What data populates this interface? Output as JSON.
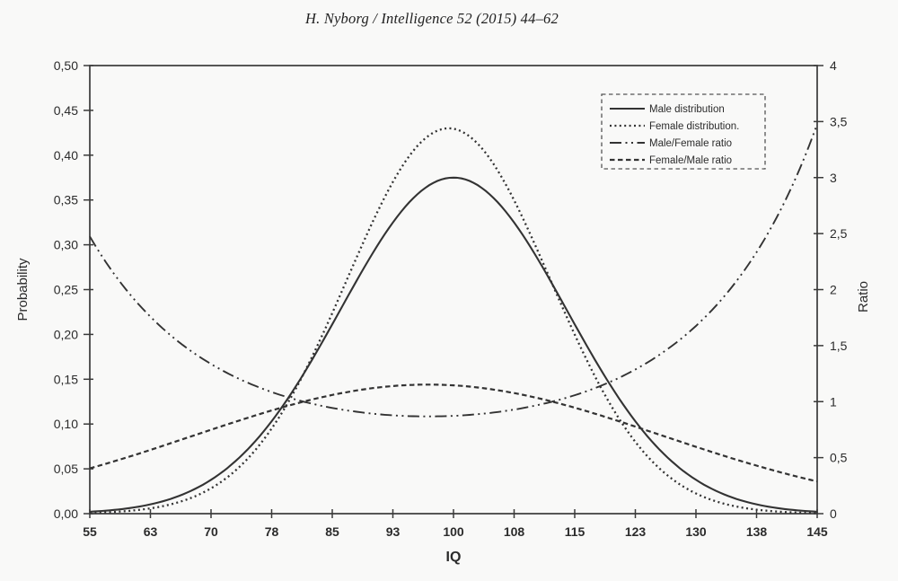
{
  "header": {
    "citation": "H. Nyborg / Intelligence 52 (2015) 44–62"
  },
  "colors": {
    "line": "#333333",
    "axis": "#3a3a3a",
    "text": "#2b2b2b",
    "background": "#f9f9f8"
  },
  "chart_data": {
    "type": "line",
    "title": "",
    "xlabel": "IQ",
    "ylabel_left": "Probability",
    "ylabel_right": "Ratio",
    "x_range": [
      55,
      145
    ],
    "y_left_range": [
      0,
      0.5
    ],
    "y_right_range": [
      0,
      4
    ],
    "grid": false,
    "legend_position": "top-right",
    "legend_border": "dashed",
    "x_tick_labels": [
      "55",
      "63",
      "70",
      "78",
      "85",
      "93",
      "100",
      "108",
      "115",
      "123",
      "130",
      "138",
      "145"
    ],
    "y_left_ticks": {
      "values": [
        0,
        0.05,
        0.1,
        0.15,
        0.2,
        0.25,
        0.3,
        0.35,
        0.4,
        0.45,
        0.5
      ],
      "labels": [
        "0,00",
        "0,05",
        "0,10",
        "0,15",
        "0,20",
        "0,25",
        "0,30",
        "0,35",
        "0,40",
        "0,45",
        "0,50"
      ]
    },
    "y_right_ticks": {
      "values": [
        0,
        0.5,
        1,
        1.5,
        2,
        2.5,
        3,
        3.5,
        4
      ],
      "labels": [
        "0",
        "0,5",
        "1",
        "1,5",
        "2",
        "2,5",
        "3",
        "3,5",
        "4"
      ]
    },
    "x_sample": [
      55,
      63,
      70,
      78,
      85,
      93,
      100,
      108,
      115,
      123,
      130,
      138,
      145
    ],
    "series": [
      {
        "name": "Male distribution",
        "axis": "left",
        "line_style": "solid",
        "model": {
          "type": "gaussian",
          "mean": 100,
          "sd": 14,
          "peak": 0.375
        },
        "values": [
          0.002,
          0.011,
          0.038,
          0.109,
          0.211,
          0.331,
          0.375,
          0.318,
          0.211,
          0.097,
          0.038,
          0.009,
          0.002
        ]
      },
      {
        "name": "Female distribution.",
        "axis": "left",
        "line_style": "dotted",
        "model": {
          "type": "gaussian",
          "mean": 99.4,
          "sd": 12.6,
          "peak": 0.43
        },
        "values": [
          0.001,
          0.007,
          0.028,
          0.102,
          0.224,
          0.378,
          0.43,
          0.341,
          0.2,
          0.074,
          0.023,
          0.004,
          0.001
        ]
      },
      {
        "name": "Male/Female ratio",
        "axis": "right",
        "line_style": "dash-dot",
        "model": {
          "type": "ratio",
          "numerator": 0,
          "denominator": 1
        },
        "values": [
          2.42,
          1.73,
          1.34,
          1.07,
          0.94,
          0.88,
          0.87,
          0.93,
          1.06,
          1.31,
          1.68,
          2.39,
          3.45
        ]
      },
      {
        "name": "Female/Male ratio",
        "axis": "right",
        "line_style": "dashed",
        "model": {
          "type": "ratio",
          "numerator": 1,
          "denominator": 0
        },
        "values": [
          0.41,
          0.58,
          0.75,
          0.93,
          1.06,
          1.14,
          1.15,
          1.07,
          0.95,
          0.77,
          0.6,
          0.42,
          0.29
        ]
      }
    ]
  }
}
